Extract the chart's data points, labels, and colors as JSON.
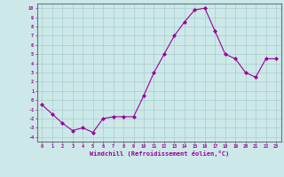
{
  "x": [
    0,
    1,
    2,
    3,
    4,
    5,
    6,
    7,
    8,
    9,
    10,
    11,
    12,
    13,
    14,
    15,
    16,
    17,
    18,
    19,
    20,
    21,
    22,
    23
  ],
  "y": [
    -0.5,
    -1.5,
    -2.5,
    -3.3,
    -3.0,
    -3.5,
    -2.0,
    -1.8,
    -1.8,
    -1.8,
    0.5,
    3.0,
    5.0,
    7.0,
    8.5,
    9.8,
    10.0,
    7.5,
    5.0,
    4.5,
    3.0,
    2.5,
    4.5,
    4.5
  ],
  "line_color": "#990099",
  "marker": "D",
  "marker_size": 2,
  "bg_color": "#cde8e8",
  "grid_color": "#aacccc",
  "xlabel": "Windchill (Refroidissement éolien,°C)",
  "xlabel_color": "#990099",
  "tick_color": "#990099",
  "ylim": [
    -4.5,
    10.5
  ],
  "xlim": [
    -0.5,
    23.5
  ],
  "yticks": [
    -4,
    -3,
    -2,
    -1,
    0,
    1,
    2,
    3,
    4,
    5,
    6,
    7,
    8,
    9,
    10
  ],
  "xticks": [
    0,
    1,
    2,
    3,
    4,
    5,
    6,
    7,
    8,
    9,
    10,
    11,
    12,
    13,
    14,
    15,
    16,
    17,
    18,
    19,
    20,
    21,
    22,
    23
  ],
  "xtick_labels": [
    "0",
    "1",
    "2",
    "3",
    "4",
    "5",
    "6",
    "7",
    "8",
    "9",
    "10",
    "11",
    "12",
    "13",
    "14",
    "15",
    "16",
    "17",
    "18",
    "19",
    "20",
    "21",
    "22",
    "23"
  ],
  "ytick_labels": [
    "-4",
    "-3",
    "-2",
    "-1",
    "0",
    "1",
    "2",
    "3",
    "4",
    "5",
    "6",
    "7",
    "8",
    "9",
    "10"
  ]
}
